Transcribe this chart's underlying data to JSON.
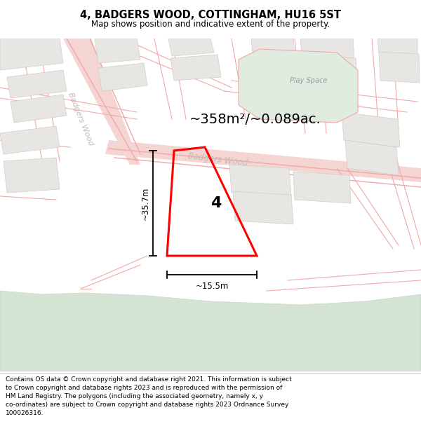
{
  "title": "4, BADGERS WOOD, COTTINGHAM, HU16 5ST",
  "subtitle": "Map shows position and indicative extent of the property.",
  "area_text": "~358m²/~0.089ac.",
  "height_label": "~35.7m",
  "width_label": "~15.5m",
  "number_label": "4",
  "road_label_diag": "Badgers Wood",
  "road_label_horiz": "Badgers Wood",
  "play_space": "Play Space",
  "footer_lines": [
    "Contains OS data © Crown copyright and database right 2021. This information is subject",
    "to Crown copyright and database rights 2023 and is reproduced with the permission of",
    "HM Land Registry. The polygons (including the associated geometry, namely x, y",
    "co-ordinates) are subject to Crown copyright and database rights 2023 Ordnance Survey",
    "100026316."
  ],
  "map_bg": "#f7f5f2",
  "plot_edge": "#ff0000",
  "road_line_color": "#f0a8a8",
  "road_fill_color": "#f5d5d2",
  "building_face": "#e8e6e3",
  "building_edge": "#d0cdc8",
  "green_color": "#d4e4d4",
  "green_edge": "#c8d8c8",
  "footer_bg": "#ffffff",
  "title_bg": "#ffffff",
  "dim_line_color": "#000000",
  "label_color": "#000000",
  "road_label_color": "#c0bcb8",
  "play_space_color": "#999999"
}
